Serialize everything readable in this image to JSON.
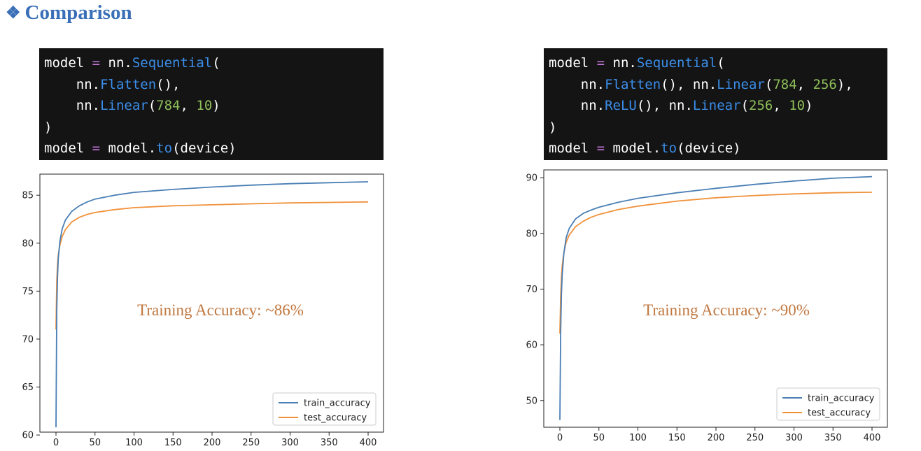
{
  "header": {
    "bullet": "❖",
    "title": "Comparison"
  },
  "code_blocks": [
    {
      "lines": [
        [
          [
            "model ",
            ""
          ],
          [
            "=",
            "op"
          ],
          [
            " nn.",
            ""
          ],
          [
            "Sequential",
            "kw"
          ],
          [
            "(",
            ""
          ]
        ],
        [
          [
            "    nn.",
            ""
          ],
          [
            "Flatten",
            "kw"
          ],
          [
            "(),",
            ""
          ]
        ],
        [
          [
            "    nn.",
            ""
          ],
          [
            "Linear",
            "kw"
          ],
          [
            "(",
            ""
          ],
          [
            "784",
            "num"
          ],
          [
            ", ",
            ""
          ],
          [
            "10",
            "num"
          ],
          [
            ")",
            ""
          ]
        ],
        [
          [
            ")",
            ""
          ]
        ],
        [
          [
            "model ",
            ""
          ],
          [
            "=",
            "op"
          ],
          [
            " model.",
            ""
          ],
          [
            "to",
            "kw"
          ],
          [
            "(device)",
            ""
          ]
        ]
      ]
    },
    {
      "lines": [
        [
          [
            "model ",
            ""
          ],
          [
            "=",
            "op"
          ],
          [
            " nn.",
            ""
          ],
          [
            "Sequential",
            "kw"
          ],
          [
            "(",
            ""
          ]
        ],
        [
          [
            "    nn.",
            ""
          ],
          [
            "Flatten",
            "kw"
          ],
          [
            "(), nn.",
            ""
          ],
          [
            "Linear",
            "kw"
          ],
          [
            "(",
            ""
          ],
          [
            "784",
            "num"
          ],
          [
            ", ",
            ""
          ],
          [
            "256",
            "num"
          ],
          [
            "),",
            ""
          ]
        ],
        [
          [
            "    nn.",
            ""
          ],
          [
            "ReLU",
            "kw"
          ],
          [
            "(), nn.",
            ""
          ],
          [
            "Linear",
            "kw"
          ],
          [
            "(",
            ""
          ],
          [
            "256",
            "num"
          ],
          [
            ", ",
            ""
          ],
          [
            "10",
            "num"
          ],
          [
            ")",
            ""
          ]
        ],
        [
          [
            ")",
            ""
          ]
        ],
        [
          [
            "model ",
            ""
          ],
          [
            "=",
            "op"
          ],
          [
            " model.",
            ""
          ],
          [
            "to",
            "kw"
          ],
          [
            "(device)",
            ""
          ]
        ]
      ]
    }
  ],
  "colors": {
    "train": "#4a7fb5",
    "test": "#f0913a",
    "annotation": "#c0773f",
    "title": "#3a6fb7"
  },
  "chart_data": [
    {
      "type": "line",
      "xlim": [
        0,
        400
      ],
      "ylim": [
        60.3,
        87.2
      ],
      "xticks": [
        0,
        50,
        100,
        150,
        200,
        250,
        300,
        350,
        400
      ],
      "yticks": [
        60,
        65,
        70,
        75,
        80,
        85
      ],
      "annotation": "Training Accuracy: ~86%",
      "legend_position": "lower-right",
      "series": [
        {
          "name": "train_accuracy",
          "color": "#4a7fb5",
          "x": [
            0,
            1,
            2,
            3,
            5,
            8,
            12,
            20,
            30,
            40,
            50,
            75,
            100,
            150,
            200,
            250,
            300,
            350,
            400
          ],
          "y": [
            60.8,
            73.0,
            76.5,
            78.4,
            80.2,
            81.5,
            82.4,
            83.3,
            83.9,
            84.3,
            84.6,
            85.0,
            85.3,
            85.6,
            85.85,
            86.05,
            86.2,
            86.3,
            86.4
          ]
        },
        {
          "name": "test_accuracy",
          "color": "#f0913a",
          "x": [
            0,
            1,
            2,
            3,
            5,
            8,
            12,
            20,
            30,
            40,
            50,
            75,
            100,
            150,
            200,
            250,
            300,
            350,
            400
          ],
          "y": [
            71.0,
            76.0,
            77.8,
            78.8,
            79.8,
            80.7,
            81.4,
            82.2,
            82.7,
            83.0,
            83.2,
            83.5,
            83.7,
            83.9,
            84.0,
            84.1,
            84.2,
            84.25,
            84.3
          ]
        }
      ]
    },
    {
      "type": "line",
      "xlim": [
        0,
        400
      ],
      "ylim": [
        45.2,
        91.4
      ],
      "xticks": [
        0,
        50,
        100,
        150,
        200,
        250,
        300,
        350,
        400
      ],
      "yticks": [
        50,
        60,
        70,
        80,
        90
      ],
      "annotation": "Training Accuracy: ~90%",
      "legend_position": "lower-right",
      "series": [
        {
          "name": "train_accuracy",
          "color": "#4a7fb5",
          "x": [
            0,
            1,
            2,
            3,
            5,
            8,
            12,
            20,
            30,
            40,
            50,
            75,
            100,
            150,
            200,
            250,
            300,
            350,
            400
          ],
          "y": [
            46.5,
            62.0,
            69.0,
            72.5,
            76.3,
            79.2,
            80.9,
            82.6,
            83.6,
            84.2,
            84.7,
            85.6,
            86.3,
            87.3,
            88.1,
            88.8,
            89.4,
            89.9,
            90.2
          ]
        },
        {
          "name": "test_accuracy",
          "color": "#f0913a",
          "x": [
            0,
            1,
            2,
            3,
            5,
            8,
            12,
            20,
            30,
            40,
            50,
            75,
            100,
            150,
            200,
            250,
            300,
            350,
            400
          ],
          "y": [
            62.0,
            68.5,
            72.0,
            74.2,
            76.5,
            78.4,
            79.7,
            81.2,
            82.2,
            82.9,
            83.4,
            84.3,
            84.9,
            85.8,
            86.4,
            86.8,
            87.1,
            87.3,
            87.4
          ]
        }
      ]
    }
  ]
}
